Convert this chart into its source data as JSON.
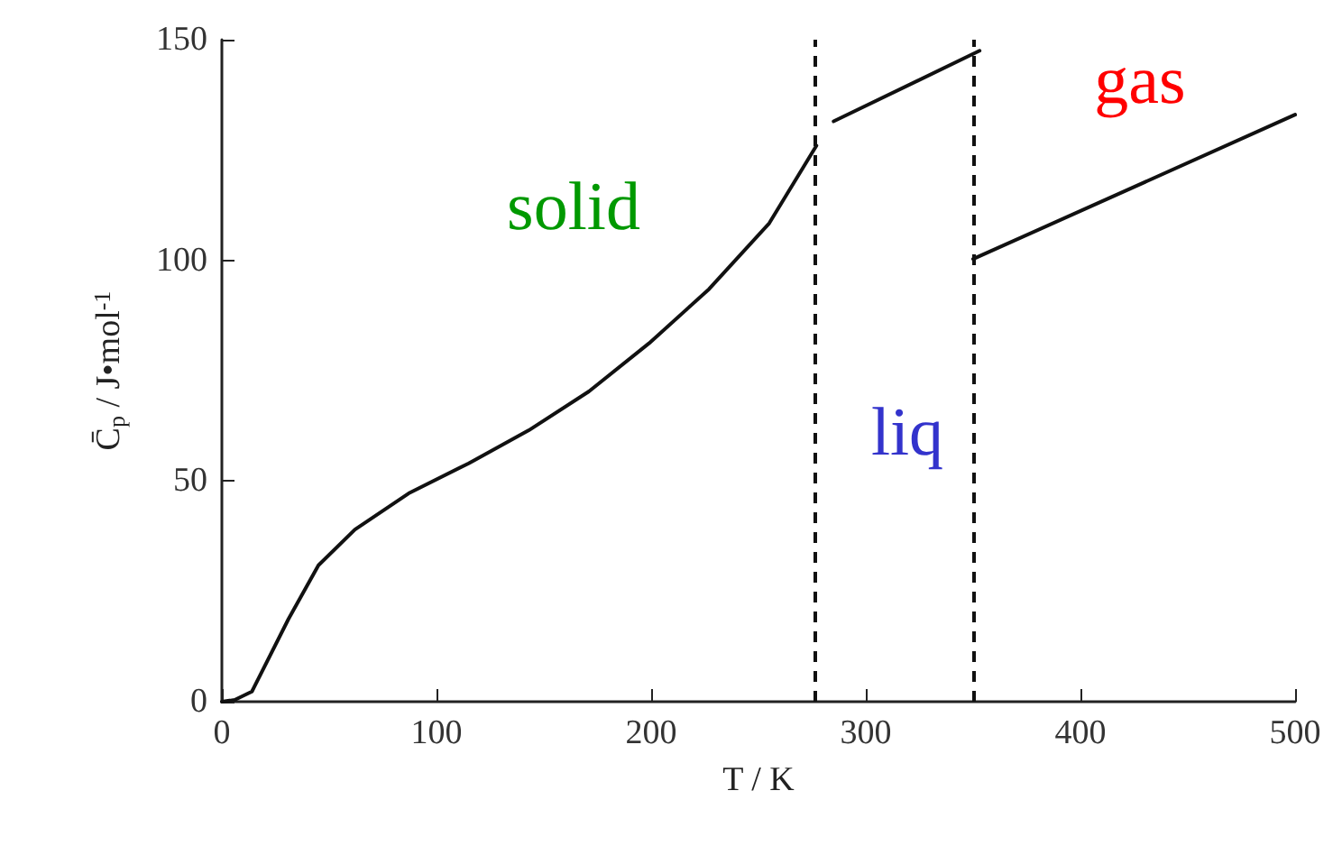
{
  "chart_data": {
    "type": "line",
    "xlabel": "T / K",
    "ylabel": "C̄$_{p}$ / J•mol$^{-1}$",
    "xlim": [
      0,
      500
    ],
    "xticks": [
      0,
      100,
      200,
      300,
      400,
      500
    ],
    "ylim": [
      0,
      150
    ],
    "yticks": [
      0,
      50,
      100,
      150
    ],
    "grid": false,
    "marker": "none",
    "line_style": "solid",
    "series": [
      {
        "color": "#111111",
        "x": [
          0,
          6,
          14,
          31,
          45,
          62,
          87,
          115,
          143,
          171,
          199,
          227,
          255,
          277
        ],
        "values": [
          0,
          0.4,
          2.3,
          18.7,
          30.9,
          39,
          47.2,
          54,
          61.5,
          70.3,
          81.2,
          93.5,
          108.4,
          126
        ]
      },
      {
        "color": "#111111",
        "x": [
          285,
          353
        ],
        "values": [
          131.5,
          147.5
        ]
      },
      {
        "color": "#111111",
        "x": [
          350,
          500
        ],
        "values": [
          100.3,
          133
        ]
      }
    ],
    "ref_lines": [
      {
        "axis": "x",
        "value": 276,
        "color": "#111111",
        "line_style": "dashed"
      },
      {
        "axis": "x",
        "value": 350,
        "color": "#111111",
        "line_style": "dashed"
      }
    ],
    "annotations": [
      "solid",
      "liq",
      "gas"
    ]
  }
}
